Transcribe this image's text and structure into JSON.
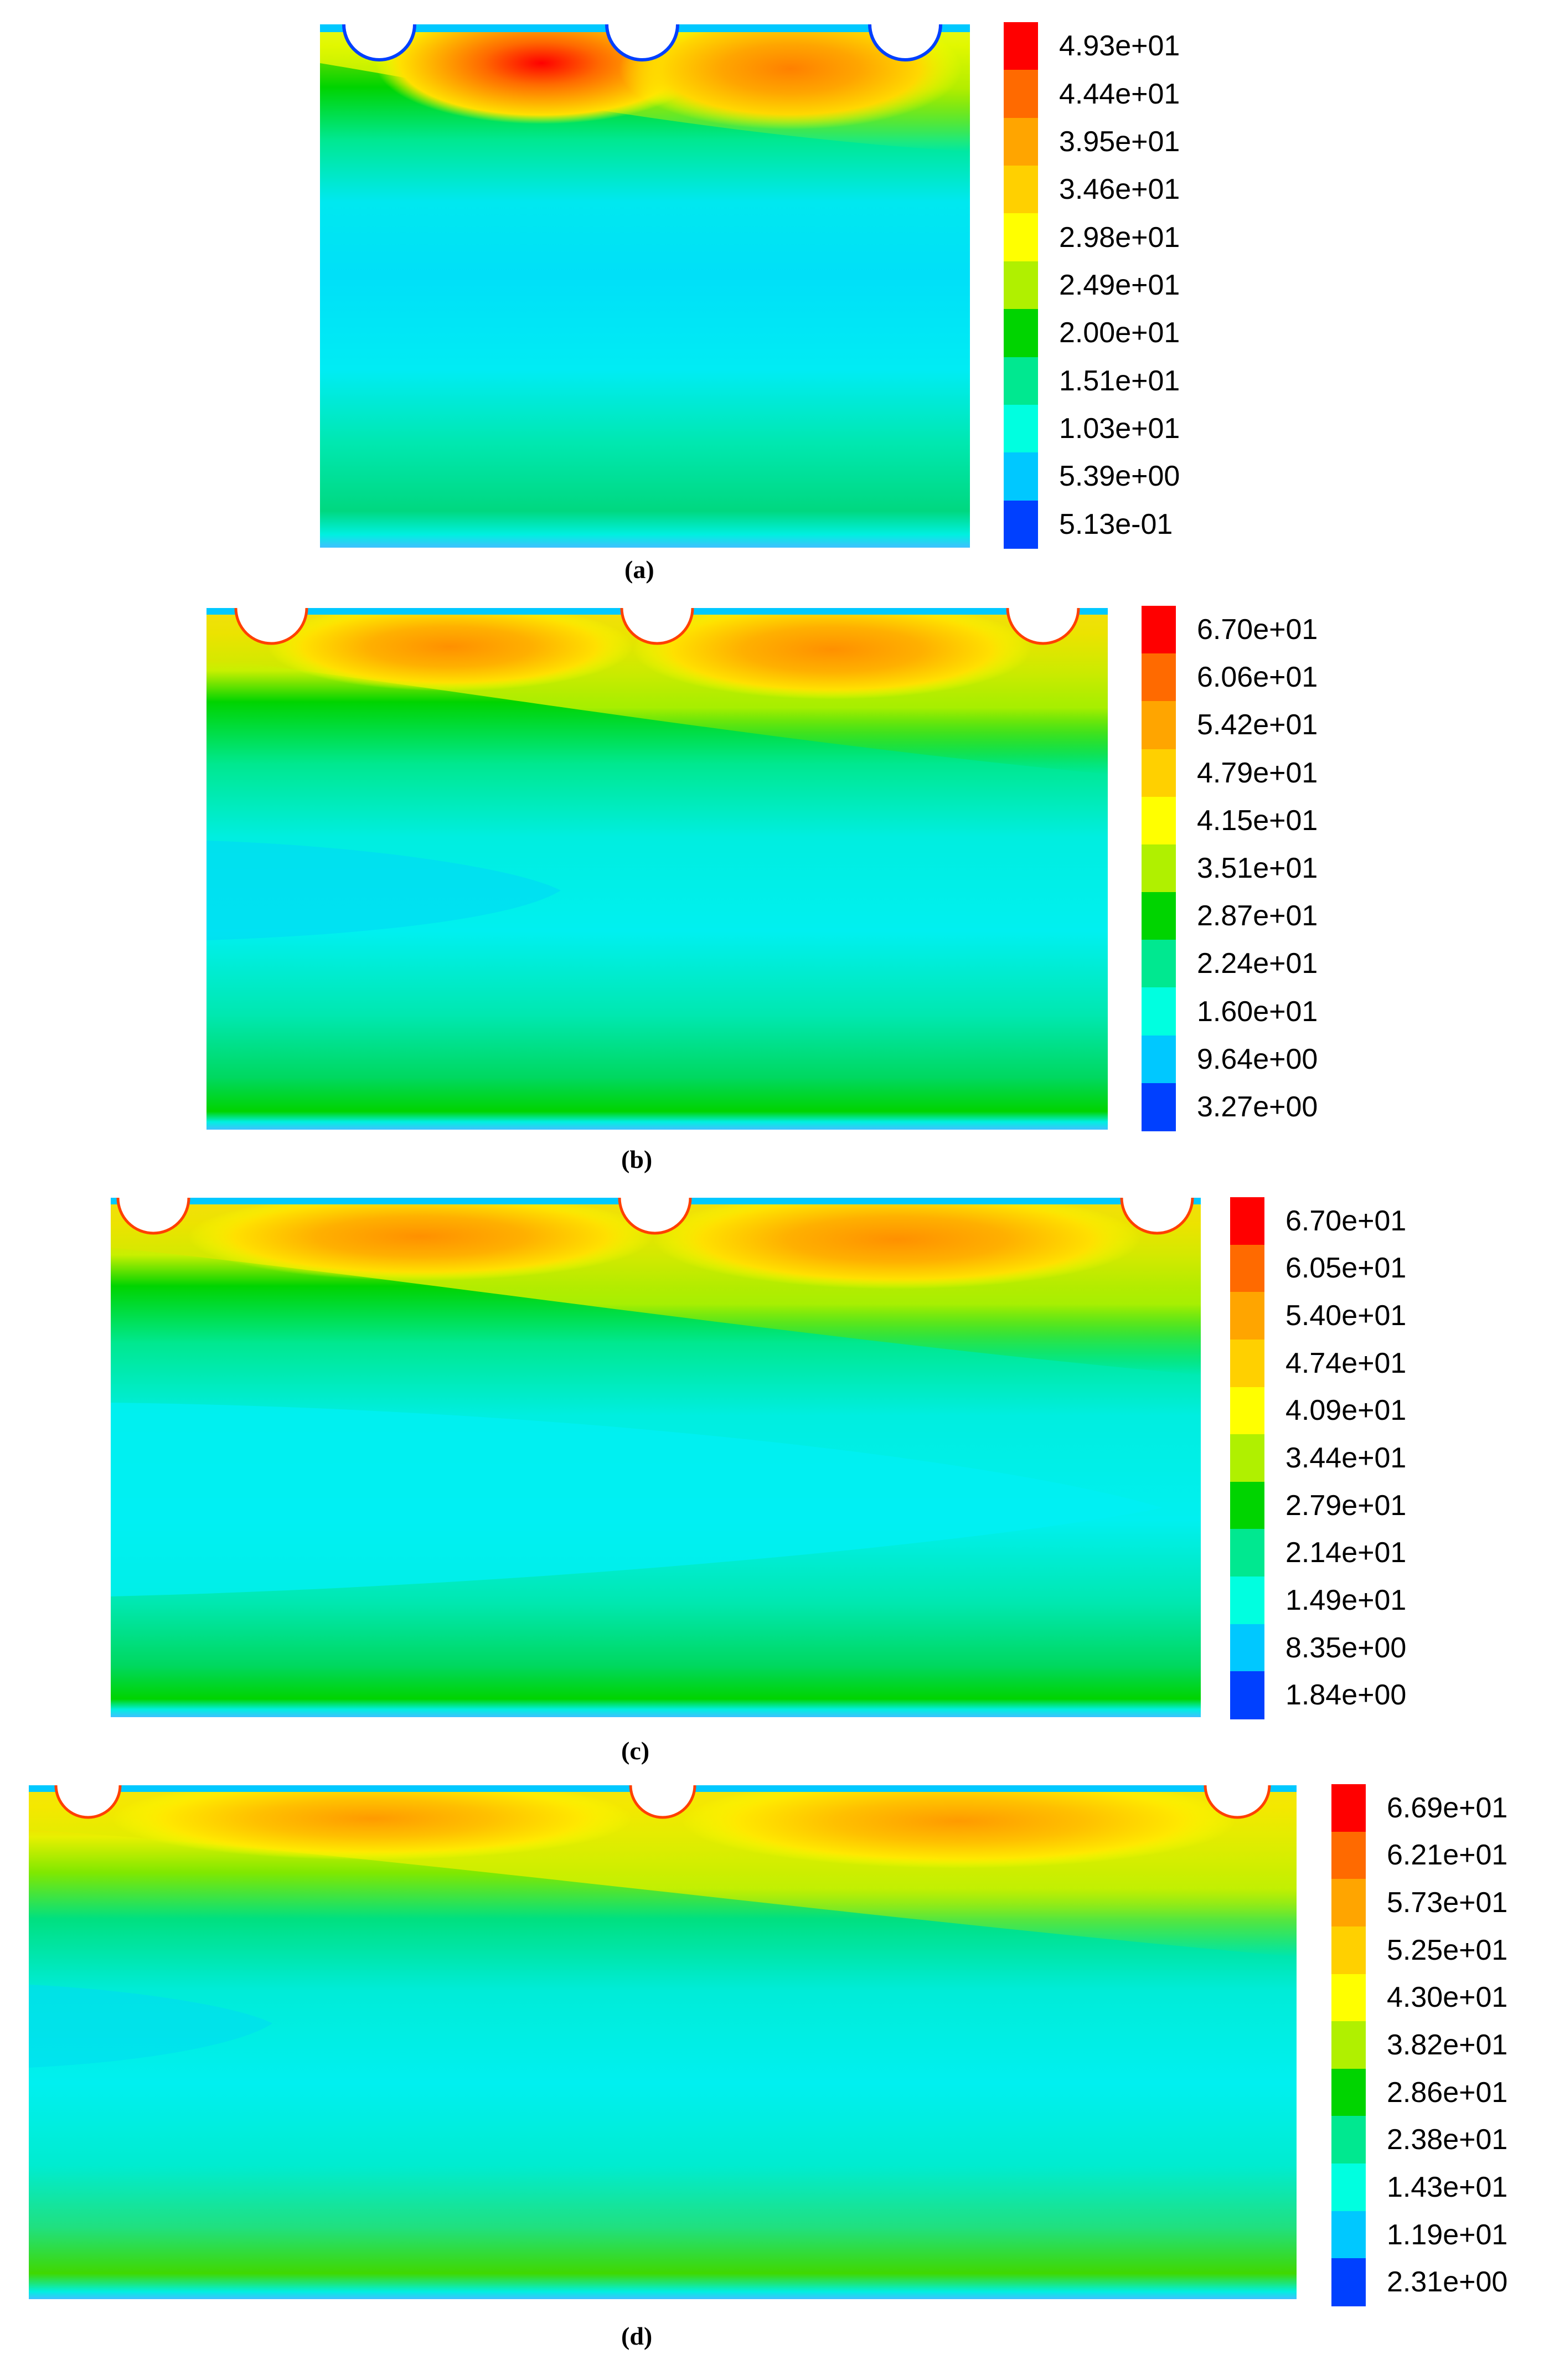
{
  "panels": [
    {
      "caption": "(a)",
      "legend_labels": [
        "4.93e+01",
        "4.44e+01",
        "3.95e+01",
        "3.46e+01",
        "2.98e+01",
        "2.49e+01",
        "2.00e+01",
        "1.51e+01",
        "1.03e+01",
        "5.39e+00",
        "5.13e-01"
      ],
      "legend_colors": [
        "#ff0000",
        "#ff6a00",
        "#ffa500",
        "#ffd000",
        "#ffff00",
        "#b0f000",
        "#00d400",
        "#00e890",
        "#00ffe0",
        "#00c8ff",
        "#0040ff"
      ]
    },
    {
      "caption": "(b)",
      "legend_labels": [
        "6.70e+01",
        "6.06e+01",
        "5.42e+01",
        "4.79e+01",
        "4.15e+01",
        "3.51e+01",
        "2.87e+01",
        "2.24e+01",
        "1.60e+01",
        "9.64e+00",
        "3.27e+00"
      ],
      "legend_colors": [
        "#ff0000",
        "#ff6a00",
        "#ffa500",
        "#ffd000",
        "#ffff00",
        "#b0f000",
        "#00d400",
        "#00e890",
        "#00ffe0",
        "#00c8ff",
        "#0040ff"
      ]
    },
    {
      "caption": "(c)",
      "legend_labels": [
        "6.70e+01",
        "6.05e+01",
        "5.40e+01",
        "4.74e+01",
        "4.09e+01",
        "3.44e+01",
        "2.79e+01",
        "2.14e+01",
        "1.49e+01",
        "8.35e+00",
        "1.84e+00"
      ],
      "legend_colors": [
        "#ff0000",
        "#ff6a00",
        "#ffa500",
        "#ffd000",
        "#ffff00",
        "#b0f000",
        "#00d400",
        "#00e890",
        "#00ffe0",
        "#00c8ff",
        "#0040ff"
      ]
    },
    {
      "caption": "(d)",
      "legend_labels": [
        "6.69e+01",
        "6.21e+01",
        "5.73e+01",
        "5.25e+01",
        "4.30e+01",
        "3.82e+01",
        "2.86e+01",
        "2.38e+01",
        "1.43e+01",
        "1.19e+01",
        "2.31e+00"
      ],
      "legend_colors": [
        "#ff0000",
        "#ff6a00",
        "#ffa500",
        "#ffd000",
        "#ffff00",
        "#b0f000",
        "#00d400",
        "#00e890",
        "#00ffe0",
        "#00c8ff",
        "#0040ff"
      ]
    }
  ]
}
